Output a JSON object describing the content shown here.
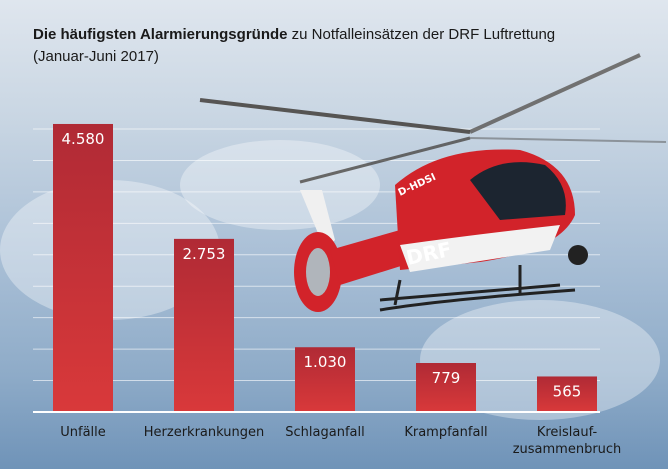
{
  "chart_data": {
    "type": "bar",
    "title_bold": "Die häufigsten Alarmierungsgründe",
    "title_rest": "zu Notfalleinsätzen der DRF Luftrettung",
    "subtitle": "(Januar-Juni 2017)",
    "categories": [
      "Unfälle",
      "Herzerkrankungen",
      "Schlaganfall",
      "Krampfanfall",
      "Kreislauf-\nzusammenbruch"
    ],
    "values": [
      4580,
      2753,
      1030,
      779,
      565
    ],
    "value_labels": [
      "4.580",
      "2.753",
      "1.030",
      "779",
      "565"
    ],
    "ylim": [
      0,
      4500
    ],
    "grid_step": 500,
    "grid": true,
    "bar_color": "#d3373a",
    "bar_color_top": "#b02a35"
  },
  "image": {
    "helicopter_text": "DRF",
    "helicopter_reg": "D-HDSI"
  }
}
